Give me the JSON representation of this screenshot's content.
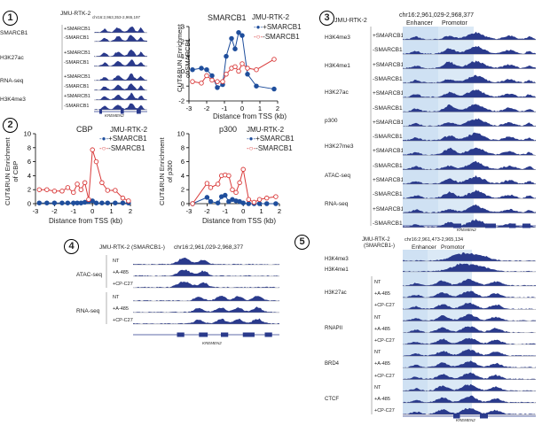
{
  "panels": {
    "p1": {
      "number": "1",
      "cell_line": "JMU-RTK-2",
      "locus": "chr16:2,963,353-2,965,197",
      "rows": [
        "+SMARCB1",
        "-SMARCB1",
        "+SMARCB1",
        "-SMARCB1",
        "+SMARCB1",
        "-SMARCB1",
        "+SMARCB1",
        "-SMARCB1"
      ],
      "marks": [
        "SMARCB1",
        "H3K27ac",
        "RNA-seq",
        "H3K4me3"
      ],
      "gene": "KREMEN2"
    },
    "p2": {
      "number": "2"
    },
    "p3": {
      "number": "3",
      "cell_line": "JMU-RTK-2",
      "locus": "chr16:2,961,029-2,968,377",
      "regions": {
        "enhancer": "Enhancer",
        "promoter": "Promotor"
      },
      "marks": [
        "H3K4me3",
        "H3K4me1",
        "H3K27ac",
        "p300",
        "H3K27me3",
        "ATAC-seq",
        "RNA-seq"
      ],
      "rows": [
        "+SMARCB1",
        "-SMARCB1",
        "+SMARCB1",
        "-SMARCB1",
        "+SMARCB1",
        "-SMARCB1",
        "+SMARCB1",
        "-SMARCB1",
        "+SMARCB1",
        "-SMARCB1",
        "+SMARCB1",
        "-SMARCB1",
        "+SMARCB1",
        "-SMARCB1"
      ],
      "gene": "KREMEN2"
    },
    "p4": {
      "number": "4",
      "title": "JMU-RTK-2 (SMARCB1-)",
      "locus": "chr16:2,961,029-2,968,377",
      "marks": [
        "ATAC-seq",
        "RNA-seq"
      ],
      "rows": [
        "NT",
        "+A-485",
        "+CP-C27",
        "NT",
        "+A-485",
        "+CP-C27"
      ],
      "gene": "KREMEN2"
    },
    "p5": {
      "number": "5",
      "title_line1": "JMU-RTK-2",
      "title_line2": "(SMARCB1-)",
      "locus": "chr16:2,961,473-2,965,134",
      "regions": {
        "enhancer": "Enhancer",
        "promoter": "Promotor"
      },
      "marks": [
        "H3K4me3",
        "H3K4me1",
        "H3K27ac",
        "RNAPII",
        "BRD4",
        "CTCF"
      ],
      "rows": [
        "NT",
        "+A-485",
        "+CP-C27",
        "NT",
        "+A-485",
        "+CP-C27",
        "NT",
        "+A-485",
        "+CP-C27",
        "NT",
        "+A-485",
        "+CP-C27"
      ],
      "gene": "KREMEN2"
    }
  },
  "chart_data": [
    {
      "type": "line",
      "title": "SMARCB1",
      "cell_line": "JMU-RTK-2",
      "xlabel": "Distance from TSS (kb)",
      "ylabel_line1": "CUT&RUN Enrichment",
      "ylabel_line2": "of SMARCB1",
      "xlim": [
        -3,
        2
      ],
      "ylim": [
        -2,
        3
      ],
      "xticks": [
        -3,
        -2,
        -1,
        0,
        1,
        2
      ],
      "yticks": [
        -2,
        -1,
        0,
        1,
        2,
        3
      ],
      "series": [
        {
          "name": "+SMARCB1",
          "color": "#1f4e9c",
          "x": [
            -2.8,
            -2.3,
            -2.0,
            -1.7,
            -1.4,
            -1.1,
            -0.9,
            -0.6,
            -0.4,
            -0.2,
            0.0,
            0.3,
            0.8,
            1.8
          ],
          "y": [
            0.1,
            0.2,
            0.1,
            -0.3,
            -1.1,
            -0.9,
            1.0,
            2.2,
            1.5,
            2.6,
            2.4,
            -0.2,
            -1.0,
            -1.2
          ]
        },
        {
          "name": "-SMARCB1",
          "color": "#d93a3a",
          "x": [
            -2.8,
            -2.3,
            -2.0,
            -1.7,
            -1.4,
            -1.1,
            -0.9,
            -0.6,
            -0.4,
            -0.2,
            0.0,
            0.3,
            0.8,
            1.8
          ],
          "y": [
            -0.7,
            -0.8,
            -0.3,
            -0.6,
            -0.7,
            -0.7,
            -0.2,
            0.2,
            0.3,
            0.0,
            0.5,
            0.2,
            0.1,
            0.8
          ]
        }
      ]
    },
    {
      "type": "line",
      "title": "CBP",
      "cell_line": "JMU-RTK-2",
      "xlabel": "Distance from TSS (kb)",
      "ylabel_line1": "CUT&RUN Enrichment",
      "ylabel_line2": "of CBP",
      "xlim": [
        -3,
        2
      ],
      "ylim": [
        0,
        10
      ],
      "xticks": [
        -3,
        -2,
        -1,
        0,
        1,
        2
      ],
      "yticks": [
        0,
        2,
        4,
        6,
        8,
        10
      ],
      "series": [
        {
          "name": "+SMARCB1",
          "color": "#1f4e9c",
          "x": [
            -2.8,
            -2.4,
            -2.0,
            -1.6,
            -1.3,
            -1.0,
            -0.8,
            -0.6,
            -0.4,
            -0.2,
            0.0,
            0.2,
            0.5,
            0.8,
            1.2,
            1.6,
            1.9
          ],
          "y": [
            0.1,
            0.1,
            0.1,
            0.1,
            0.1,
            0.1,
            0.1,
            0.1,
            0.2,
            0.3,
            0.4,
            0.1,
            0.1,
            0.1,
            0.1,
            0.1,
            0.1
          ]
        },
        {
          "name": "-SMARCB1",
          "color": "#d93a3a",
          "x": [
            -2.8,
            -2.4,
            -2.0,
            -1.6,
            -1.3,
            -1.0,
            -0.8,
            -0.6,
            -0.4,
            -0.2,
            0.0,
            0.2,
            0.5,
            0.8,
            1.2,
            1.6,
            1.9
          ],
          "y": [
            2.0,
            2.0,
            1.8,
            1.8,
            2.3,
            1.6,
            2.8,
            2.0,
            3.0,
            0.6,
            7.7,
            6.0,
            3.0,
            1.9,
            1.9,
            0.8,
            0.4
          ]
        }
      ]
    },
    {
      "type": "line",
      "title": "p300",
      "cell_line": "JMU-RTK-2",
      "xlabel": "Distance from TSS (kb)",
      "ylabel_line1": "CUT&RUN Enrichment",
      "ylabel_line2": "of p300",
      "xlim": [
        -3,
        2
      ],
      "ylim": [
        0,
        10
      ],
      "xticks": [
        -3,
        -2,
        -1,
        0,
        1,
        2
      ],
      "yticks": [
        0,
        2,
        4,
        6,
        8,
        10
      ],
      "series": [
        {
          "name": "+SMARCB1",
          "color": "#1f4e9c",
          "x": [
            -2.8,
            -2.0,
            -1.8,
            -1.4,
            -1.2,
            -1.0,
            -0.8,
            -0.6,
            -0.4,
            -0.2,
            0.0,
            0.3,
            0.6,
            0.9,
            1.3,
            1.8
          ],
          "y": [
            0.0,
            0.9,
            0.3,
            0.1,
            1.0,
            1.2,
            0.3,
            0.6,
            0.4,
            0.3,
            0.1,
            0.0,
            0.0,
            0.0,
            0.0,
            0.0
          ]
        },
        {
          "name": "-SMARCB1",
          "color": "#d93a3a",
          "x": [
            -2.8,
            -2.0,
            -1.8,
            -1.4,
            -1.2,
            -1.0,
            -0.8,
            -0.6,
            -0.4,
            -0.2,
            0.0,
            0.3,
            0.6,
            0.9,
            1.3,
            1.8
          ],
          "y": [
            0.0,
            2.9,
            2.3,
            2.8,
            4.0,
            4.1,
            4.0,
            2.0,
            1.6,
            3.0,
            4.9,
            0.6,
            0.2,
            0.6,
            0.8,
            1.0
          ]
        }
      ]
    }
  ]
}
